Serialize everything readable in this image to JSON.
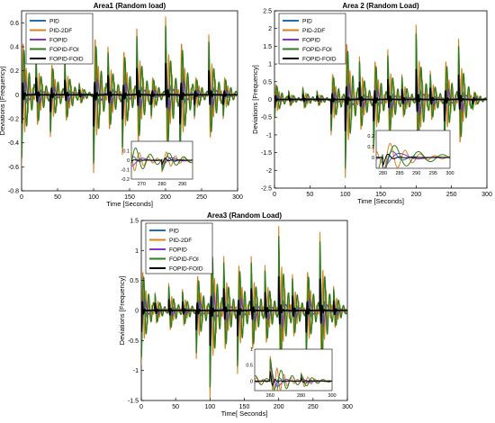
{
  "colors": {
    "PID": "#1f6fb5",
    "PID-2DF": "#d9801f",
    "FOPID": "#8a35c9",
    "FOPID-FOI": "#2e7d1a",
    "FOPID-FOID": "#000000"
  },
  "chart_data": [
    {
      "type": "line",
      "title": "Area1 (Random load)",
      "xlabel": "Time [Seconds]",
      "ylabel": "Deviations [Frequency]",
      "xlim": [
        0,
        300
      ],
      "ylim": [
        -0.8,
        0.7
      ],
      "xticks": [
        0,
        50,
        100,
        150,
        200,
        250,
        300
      ],
      "yticks": [
        -0.8,
        -0.6,
        -0.4,
        -0.2,
        0,
        0.2,
        0.4,
        0.6
      ],
      "grid": false,
      "legend_position": "top-left",
      "series": [
        {
          "name": "PID"
        },
        {
          "name": "PID-2DF"
        },
        {
          "name": "FOPID"
        },
        {
          "name": "FOPID-FOI"
        },
        {
          "name": "FOPID-FOID"
        }
      ],
      "load_events": [
        {
          "t": 0,
          "dir": -1,
          "mag": 0.6
        },
        {
          "t": 20,
          "dir": 1,
          "mag": 0.35
        },
        {
          "t": 40,
          "dir": -1,
          "mag": 0.35
        },
        {
          "t": 60,
          "dir": 1,
          "mag": 0.3
        },
        {
          "t": 80,
          "dir": 1,
          "mag": 0.1
        },
        {
          "t": 100,
          "dir": -1,
          "mag": 0.65
        },
        {
          "t": 120,
          "dir": 1,
          "mag": 0.4
        },
        {
          "t": 140,
          "dir": -1,
          "mag": 0.5
        },
        {
          "t": 160,
          "dir": 1,
          "mag": 0.55
        },
        {
          "t": 180,
          "dir": -1,
          "mag": 0.2
        },
        {
          "t": 200,
          "dir": 1,
          "mag": 0.65
        },
        {
          "t": 220,
          "dir": -1,
          "mag": 0.6
        },
        {
          "t": 240,
          "dir": -1,
          "mag": 0.2
        },
        {
          "t": 260,
          "dir": 1,
          "mag": 0.5
        },
        {
          "t": 280,
          "dir": -1,
          "mag": 0.2
        }
      ],
      "inset": {
        "xlim": [
          265,
          295
        ],
        "ylim": [
          -0.2,
          0.2
        ],
        "xticks": [
          270,
          280,
          290
        ],
        "yticks": [
          -0.2,
          -0.1,
          0,
          0.1
        ]
      }
    },
    {
      "type": "line",
      "title": "Area 2 (Random Load)",
      "xlabel": "Time [Seconds]",
      "ylabel": "Deviations [Frequency]",
      "xlim": [
        0,
        300
      ],
      "ylim": [
        -2.5,
        2.5
      ],
      "xticks": [
        0,
        50,
        100,
        150,
        200,
        250,
        300
      ],
      "yticks": [
        -2.5,
        -2,
        -1.5,
        -1,
        -0.5,
        0,
        0.5,
        1,
        1.5,
        2,
        2.5
      ],
      "grid": false,
      "legend_position": "top-left",
      "series": [
        {
          "name": "PID"
        },
        {
          "name": "PID-2DF"
        },
        {
          "name": "FOPID"
        },
        {
          "name": "FOPID-FOI"
        },
        {
          "name": "FOPID-FOID"
        }
      ],
      "load_events": [
        {
          "t": 0,
          "dir": -1,
          "mag": 0.6
        },
        {
          "t": 20,
          "dir": 1,
          "mag": 0.25
        },
        {
          "t": 40,
          "dir": 1,
          "mag": 0.35
        },
        {
          "t": 60,
          "dir": 1,
          "mag": 0.25
        },
        {
          "t": 80,
          "dir": -1,
          "mag": 1.0
        },
        {
          "t": 100,
          "dir": -1,
          "mag": 2.2
        },
        {
          "t": 120,
          "dir": 1,
          "mag": 1.2
        },
        {
          "t": 140,
          "dir": -1,
          "mag": 1.5
        },
        {
          "t": 160,
          "dir": 1,
          "mag": 1.4
        },
        {
          "t": 180,
          "dir": 1,
          "mag": 0.7
        },
        {
          "t": 200,
          "dir": 1,
          "mag": 2.1
        },
        {
          "t": 220,
          "dir": 1,
          "mag": 0.8
        },
        {
          "t": 240,
          "dir": -1,
          "mag": 1.5
        },
        {
          "t": 260,
          "dir": 1,
          "mag": 1.7
        },
        {
          "t": 280,
          "dir": -1,
          "mag": 0.3
        }
      ],
      "inset": {
        "xlim": [
          278,
          300
        ],
        "ylim": [
          -0.1,
          0.25
        ],
        "xticks": [
          280,
          285,
          290,
          295,
          300
        ],
        "yticks": [
          0,
          0.1,
          0.2
        ]
      }
    },
    {
      "type": "line",
      "title": "Area3 (Random Load)",
      "xlabel": "Time[ Seconds]",
      "ylabel": "Deviations [Frequency]",
      "xlim": [
        0,
        300
      ],
      "ylim": [
        -1.5,
        1.5
      ],
      "xticks": [
        0,
        50,
        100,
        150,
        200,
        250,
        300
      ],
      "yticks": [
        -1.5,
        -1,
        -0.5,
        0,
        0.5,
        1,
        1.5
      ],
      "grid": false,
      "legend_position": "top-left",
      "series": [
        {
          "name": "PID"
        },
        {
          "name": "PID-2DF"
        },
        {
          "name": "FOPID"
        },
        {
          "name": "FOPID-FOI"
        },
        {
          "name": "FOPID-FOID"
        }
      ],
      "load_events": [
        {
          "t": 0,
          "dir": -1,
          "mag": 0.9
        },
        {
          "t": 20,
          "dir": 1,
          "mag": 0.3
        },
        {
          "t": 40,
          "dir": 1,
          "mag": 0.45
        },
        {
          "t": 60,
          "dir": 1,
          "mag": 0.35
        },
        {
          "t": 80,
          "dir": -1,
          "mag": 0.8
        },
        {
          "t": 100,
          "dir": -1,
          "mag": 1.45
        },
        {
          "t": 120,
          "dir": 1,
          "mag": 0.9
        },
        {
          "t": 140,
          "dir": -1,
          "mag": 1.05
        },
        {
          "t": 160,
          "dir": 1,
          "mag": 0.9
        },
        {
          "t": 180,
          "dir": 1,
          "mag": 0.75
        },
        {
          "t": 200,
          "dir": 1,
          "mag": 1.4
        },
        {
          "t": 220,
          "dir": 1,
          "mag": 0.6
        },
        {
          "t": 240,
          "dir": -1,
          "mag": 0.9
        },
        {
          "t": 260,
          "dir": 1,
          "mag": 1.3
        },
        {
          "t": 280,
          "dir": 1,
          "mag": 0.4
        }
      ],
      "inset": {
        "xlim": [
          250,
          300
        ],
        "ylim": [
          -0.3,
          1.0
        ],
        "xticks": [
          260,
          280,
          300
        ],
        "yticks": [
          0,
          0.5,
          1
        ]
      }
    }
  ]
}
